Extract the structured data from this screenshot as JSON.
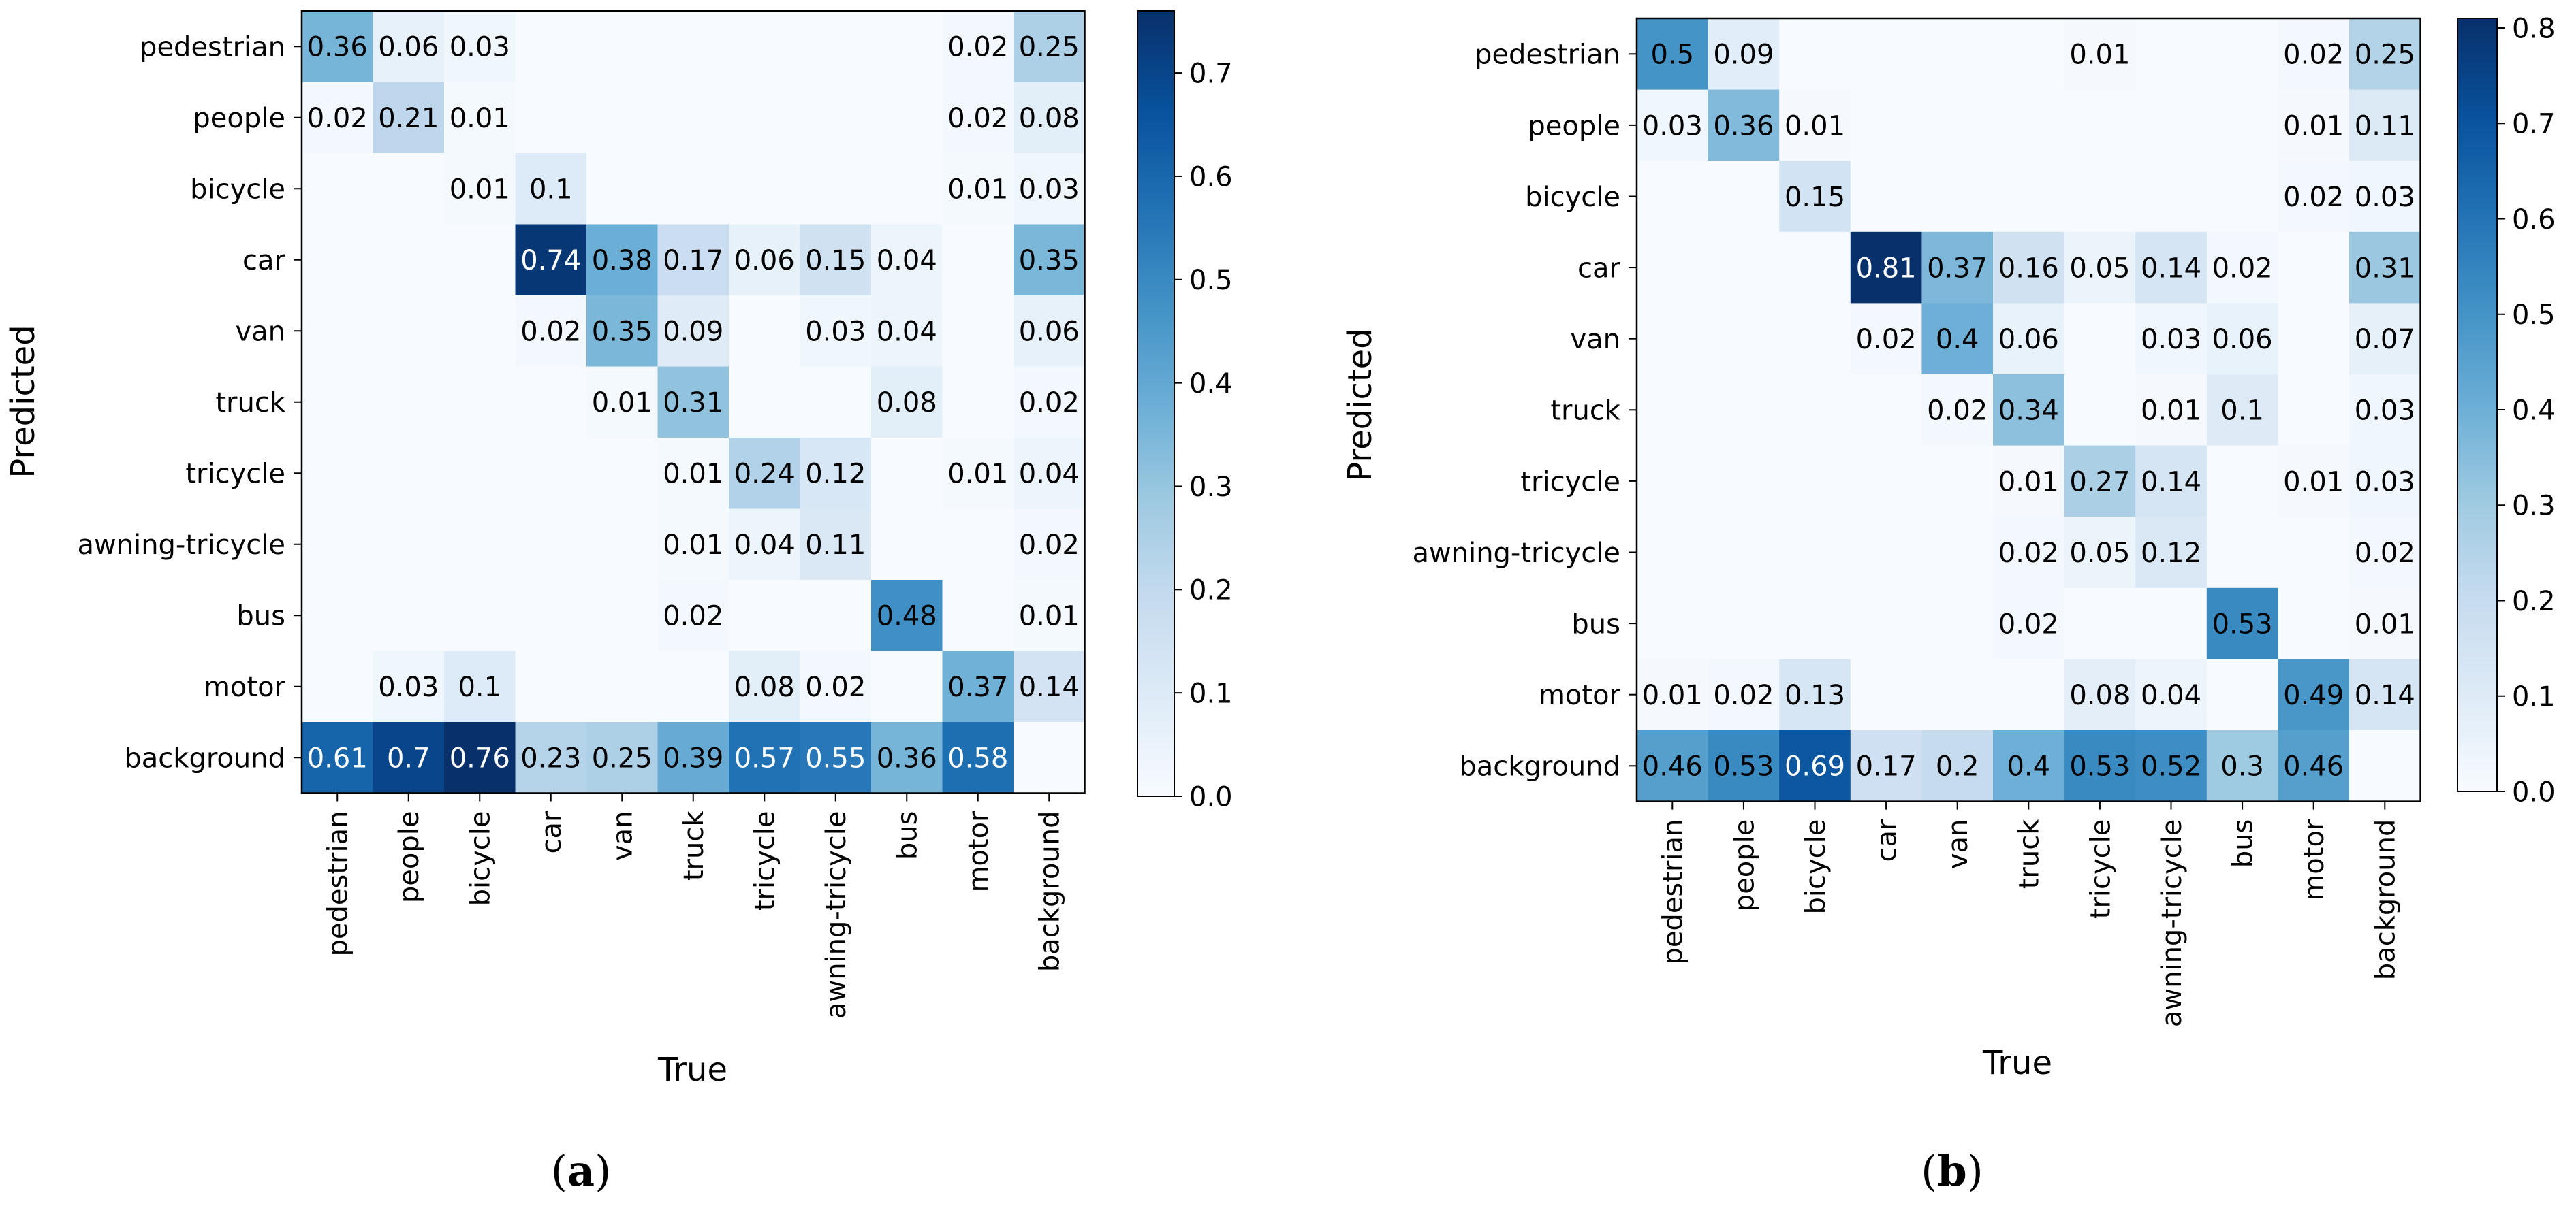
{
  "labels": [
    "pedestrian",
    "people",
    "bicycle",
    "car",
    "van",
    "truck",
    "tricycle",
    "awning-tricycle",
    "bus",
    "motor",
    "background"
  ],
  "colormap": [
    "#f7fbff",
    "#deebf7",
    "#c6dbef",
    "#9ecae1",
    "#6baed6",
    "#4292c6",
    "#2171b5",
    "#08519c",
    "#08306b"
  ],
  "chart_data": [
    {
      "type": "heatmap",
      "caption_letter": "a",
      "xlabel": "True",
      "ylabel": "Predicted",
      "vmin": 0,
      "vmax": 0.76,
      "colorbar_ticks": [
        0.0,
        0.1,
        0.2,
        0.3,
        0.4,
        0.5,
        0.6,
        0.7
      ],
      "matrix": [
        [
          0.36,
          0.06,
          0.03,
          0,
          0,
          0,
          0,
          0,
          0,
          0.02,
          0.25
        ],
        [
          0.02,
          0.21,
          0.01,
          0,
          0,
          0,
          0,
          0,
          0,
          0.02,
          0.08
        ],
        [
          0,
          0,
          0.01,
          0.1,
          0,
          0,
          0,
          0,
          0,
          0.01,
          0.03
        ],
        [
          0,
          0,
          0,
          0.74,
          0.38,
          0.17,
          0.06,
          0.15,
          0.04,
          0,
          0.35
        ],
        [
          0,
          0,
          0,
          0.02,
          0.35,
          0.09,
          0,
          0.03,
          0.04,
          0,
          0.06
        ],
        [
          0,
          0,
          0,
          0,
          0.01,
          0.31,
          0,
          0,
          0.08,
          0,
          0.02
        ],
        [
          0,
          0,
          0,
          0,
          0,
          0.01,
          0.24,
          0.12,
          0,
          0.01,
          0.04
        ],
        [
          0,
          0,
          0,
          0,
          0,
          0.01,
          0.04,
          0.11,
          0,
          0,
          0.02
        ],
        [
          0,
          0,
          0,
          0,
          0,
          0.02,
          0,
          0,
          0.48,
          0,
          0.01
        ],
        [
          0,
          0.03,
          0.1,
          0,
          0,
          0,
          0.08,
          0.02,
          0,
          0.37,
          0.14
        ],
        [
          0.61,
          0.7,
          0.76,
          0.23,
          0.25,
          0.39,
          0.57,
          0.55,
          0.36,
          0.58,
          0
        ]
      ]
    },
    {
      "type": "heatmap",
      "caption_letter": "b",
      "xlabel": "True",
      "ylabel": "Predicted",
      "vmin": 0,
      "vmax": 0.81,
      "colorbar_ticks": [
        0.0,
        0.1,
        0.2,
        0.3,
        0.4,
        0.5,
        0.6,
        0.7,
        0.8
      ],
      "matrix": [
        [
          0.5,
          0.09,
          0,
          0,
          0,
          0,
          0.01,
          0,
          0,
          0.02,
          0.25
        ],
        [
          0.03,
          0.36,
          0.01,
          0,
          0,
          0,
          0,
          0,
          0,
          0.01,
          0.11
        ],
        [
          0,
          0,
          0.15,
          0,
          0,
          0,
          0,
          0,
          0,
          0.02,
          0.03
        ],
        [
          0,
          0,
          0,
          0.81,
          0.37,
          0.16,
          0.05,
          0.14,
          0.02,
          0,
          0.31
        ],
        [
          0,
          0,
          0,
          0.02,
          0.4,
          0.06,
          0,
          0.03,
          0.06,
          0,
          0.07
        ],
        [
          0,
          0,
          0,
          0,
          0.02,
          0.34,
          0,
          0.01,
          0.1,
          0,
          0.03
        ],
        [
          0,
          0,
          0,
          0,
          0,
          0.01,
          0.27,
          0.14,
          0,
          0.01,
          0.03
        ],
        [
          0,
          0,
          0,
          0,
          0,
          0.02,
          0.05,
          0.12,
          0,
          0,
          0.02
        ],
        [
          0,
          0,
          0,
          0,
          0,
          0.02,
          0,
          0,
          0.53,
          0,
          0.01
        ],
        [
          0.01,
          0.02,
          0.13,
          0,
          0,
          0,
          0.08,
          0.04,
          0,
          0.49,
          0.14
        ],
        [
          0.46,
          0.53,
          0.69,
          0.17,
          0.2,
          0.4,
          0.53,
          0.52,
          0.3,
          0.46,
          0
        ]
      ]
    }
  ]
}
